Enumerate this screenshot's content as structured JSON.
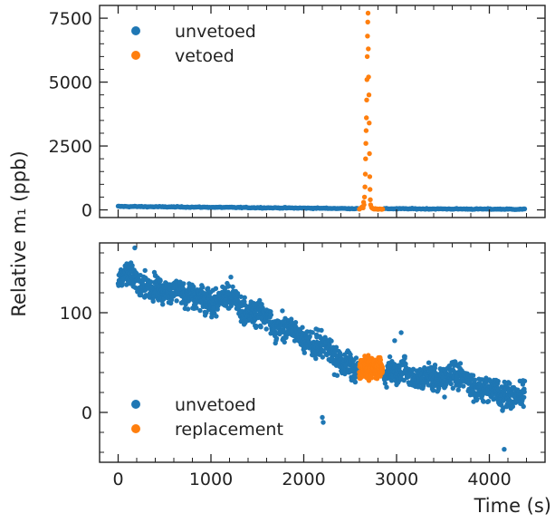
{
  "figure": {
    "ylabel": "Relative m₁ (ppb)",
    "xlabel": "Time (s)"
  },
  "colors": {
    "unvetoed": "#1f77b4",
    "highlight": "#ff7f0e"
  },
  "chart_data": [
    {
      "type": "scatter",
      "panel": "top",
      "xlim": [
        -200,
        4600
      ],
      "ylim": [
        -300,
        8000
      ],
      "x_ticks": [
        0,
        1000,
        2000,
        3000,
        4000
      ],
      "y_ticks": [
        0,
        2500,
        5000,
        7500
      ],
      "x_tick_labels": [
        "",
        "",
        "",
        "",
        ""
      ],
      "y_tick_labels": [
        "0",
        "2500",
        "5000",
        "7500"
      ],
      "legend": {
        "placement": "top-left",
        "entries": [
          "unvetoed",
          "vetoed"
        ]
      },
      "series": [
        {
          "name": "unvetoed",
          "color": "#1f77b4",
          "x_range": [
            0,
            4380
          ],
          "gap": [
            2590,
            2860
          ],
          "baseline": [
            [
              0,
              135
            ],
            [
              2600,
              50
            ],
            [
              4380,
              25
            ]
          ]
        },
        {
          "name": "vetoed",
          "color": "#ff7f0e",
          "points": [
            [
              2600,
              30
            ],
            [
              2610,
              60
            ],
            [
              2620,
              90
            ],
            [
              2630,
              120
            ],
            [
              2640,
              80
            ],
            [
              2645,
              300
            ],
            [
              2650,
              200
            ],
            [
              2655,
              500
            ],
            [
              2660,
              900
            ],
            [
              2663,
              1400
            ],
            [
              2666,
              2000
            ],
            [
              2669,
              2600
            ],
            [
              2672,
              3100
            ],
            [
              2675,
              3600
            ],
            [
              2678,
              4300
            ],
            [
              2681,
              5100
            ],
            [
              2684,
              6000
            ],
            [
              2687,
              6800
            ],
            [
              2690,
              7350
            ],
            [
              2693,
              7700
            ],
            [
              2696,
              6300
            ],
            [
              2699,
              5200
            ],
            [
              2702,
              4500
            ],
            [
              2705,
              3400
            ],
            [
              2708,
              2200
            ],
            [
              2711,
              1300
            ],
            [
              2714,
              800
            ],
            [
              2717,
              400
            ],
            [
              2720,
              200
            ],
            [
              2730,
              100
            ],
            [
              2740,
              60
            ],
            [
              2750,
              40
            ],
            [
              2760,
              30
            ],
            [
              2770,
              50
            ],
            [
              2780,
              30
            ],
            [
              2790,
              40
            ],
            [
              2800,
              20
            ],
            [
              2810,
              30
            ],
            [
              2820,
              40
            ],
            [
              2830,
              30
            ],
            [
              2840,
              20
            ],
            [
              2850,
              30
            ]
          ]
        }
      ]
    },
    {
      "type": "scatter",
      "panel": "bottom",
      "xlim": [
        -200,
        4600
      ],
      "ylim": [
        -50,
        170
      ],
      "x_ticks": [
        0,
        1000,
        2000,
        3000,
        4000
      ],
      "y_ticks": [
        0,
        100
      ],
      "x_tick_labels": [
        "0",
        "1000",
        "2000",
        "3000",
        "4000"
      ],
      "y_tick_labels": [
        "0",
        "100"
      ],
      "legend": {
        "placement": "bottom-left",
        "entries": [
          "unvetoed",
          "replacement"
        ]
      },
      "series": [
        {
          "name": "unvetoed",
          "color": "#1f77b4",
          "x_range": [
            0,
            4380
          ],
          "gap": [
            2590,
            2860
          ],
          "trend": [
            [
              0,
              132
            ],
            [
              600,
              125
            ],
            [
              1000,
              115
            ],
            [
              1500,
              100
            ],
            [
              2000,
              75
            ],
            [
              2500,
              45
            ],
            [
              3000,
              42
            ],
            [
              3500,
              35
            ],
            [
              4000,
              22
            ],
            [
              4380,
              20
            ]
          ],
          "noise": 12,
          "outliers": [
            [
              180,
              165
            ],
            [
              2210,
              -10
            ],
            [
              2200,
              -5
            ],
            [
              4160,
              -37
            ],
            [
              2980,
              72
            ],
            [
              3050,
              80
            ]
          ]
        },
        {
          "name": "replacement",
          "color": "#ff7f0e",
          "x_range": [
            2600,
            2850
          ],
          "level": 45,
          "noise": 9
        }
      ]
    }
  ]
}
